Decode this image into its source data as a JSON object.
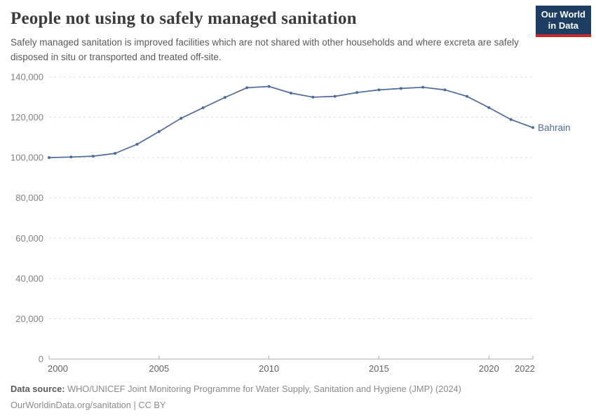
{
  "header": {
    "title": "People not using to safely managed sanitation",
    "subtitle": "Safely managed sanitation is improved facilities which are not shared with other households and where excreta are safely disposed in situ or transported and treated off-site.",
    "logo": {
      "line1": "Our World",
      "line2": "in Data",
      "bg_color": "#1d3d63",
      "accent_color": "#c5272d"
    }
  },
  "chart_data": {
    "type": "line",
    "title": "People not using to safely managed sanitation",
    "xlabel": "",
    "ylabel": "",
    "xlim": [
      2000,
      2022
    ],
    "ylim": [
      0,
      140000
    ],
    "grid": "horizontal-dashed",
    "legend_position": "end-of-line",
    "x": [
      2000,
      2001,
      2002,
      2003,
      2004,
      2005,
      2006,
      2007,
      2008,
      2009,
      2010,
      2011,
      2012,
      2013,
      2014,
      2015,
      2016,
      2017,
      2018,
      2019,
      2020,
      2021,
      2022
    ],
    "series": [
      {
        "name": "Bahrain",
        "color": "#4c6a9c",
        "values": [
          100000,
          100300,
          100700,
          102100,
          106600,
          112900,
          119500,
          124700,
          129900,
          134700,
          135300,
          132000,
          130000,
          130400,
          132300,
          133600,
          134300,
          134900,
          133600,
          130400,
          124800,
          118900,
          114900
        ]
      }
    ],
    "x_ticks": [
      2000,
      2005,
      2010,
      2015,
      2020,
      2022
    ],
    "y_ticks": [
      {
        "value": 0,
        "label": "0"
      },
      {
        "value": 20000,
        "label": "20,000"
      },
      {
        "value": 40000,
        "label": "40,000"
      },
      {
        "value": 60000,
        "label": "60,000"
      },
      {
        "value": 80000,
        "label": "80,000"
      },
      {
        "value": 100000,
        "label": "100,000"
      },
      {
        "value": 120000,
        "label": "120,000"
      },
      {
        "value": 140000,
        "label": "140,000"
      }
    ],
    "colors": {
      "line": "#4c6a9c",
      "entity_label": "#4c6a9c",
      "grid": "#dddddd",
      "axis": "#ababab",
      "y_tick_label": "#818181",
      "x_tick_label": "#616161"
    }
  },
  "footer": {
    "source_label": "Data source:",
    "source_text": "WHO/UNICEF Joint Monitoring Programme for Water Supply, Sanitation and Hygiene (JMP) (2024)",
    "license_text": "OurWorldinData.org/sanitation | CC BY"
  }
}
